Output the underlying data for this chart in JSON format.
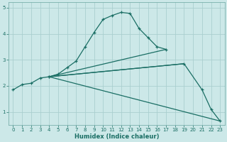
{
  "xlabel": "Humidex (Indice chaleur)",
  "xlim": [
    -0.5,
    23.5
  ],
  "ylim": [
    0.5,
    5.2
  ],
  "yticks": [
    1,
    2,
    3,
    4,
    5
  ],
  "bg_color": "#cce8e8",
  "grid_color": "#aacfcf",
  "line_color": "#1a6e64",
  "main_curve_x": [
    0,
    1,
    2,
    3,
    4,
    5,
    6,
    7,
    8,
    9,
    10,
    11,
    12,
    13,
    14,
    15,
    16,
    17
  ],
  "main_curve_y": [
    1.85,
    2.05,
    2.1,
    2.3,
    2.35,
    2.45,
    2.7,
    2.95,
    3.5,
    4.05,
    4.55,
    4.7,
    4.82,
    4.78,
    4.2,
    3.85,
    3.5,
    3.4
  ],
  "tail_curve_x": [
    4,
    19,
    21,
    22,
    23
  ],
  "tail_curve_y": [
    2.35,
    2.85,
    1.85,
    1.1,
    0.65
  ],
  "fan_lines": [
    {
      "x": [
        4,
        23
      ],
      "y": [
        2.35,
        0.65
      ]
    },
    {
      "x": [
        4,
        19
      ],
      "y": [
        2.35,
        2.85
      ]
    },
    {
      "x": [
        4,
        17
      ],
      "y": [
        2.35,
        3.4
      ]
    }
  ]
}
